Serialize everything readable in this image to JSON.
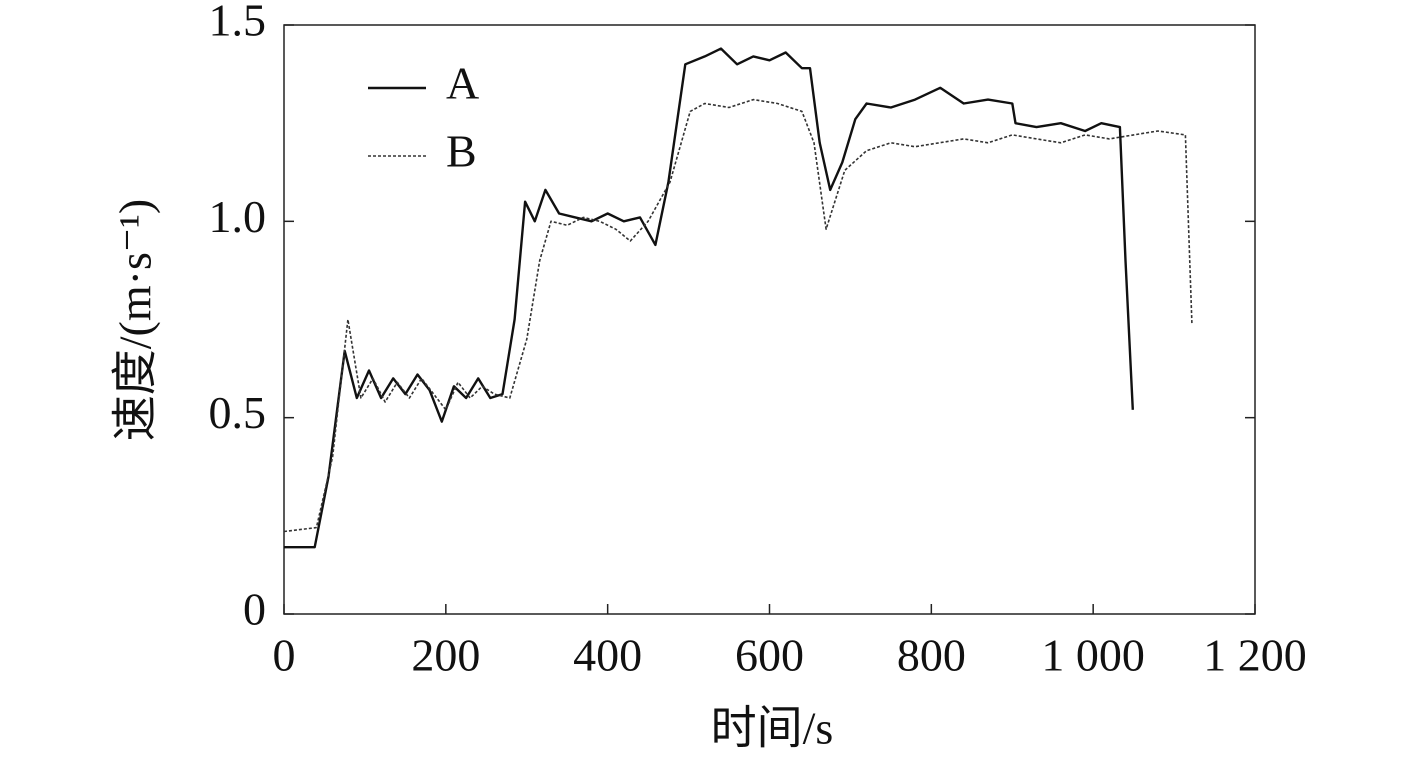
{
  "chart_data": {
    "type": "line",
    "xlabel": "时间/s",
    "ylabel": "速度/(m·s⁻¹)",
    "xlim": [
      0,
      1200
    ],
    "xticks": [
      0,
      200,
      400,
      600,
      800,
      {
        "value": 1000,
        "label": "1 000"
      },
      {
        "value": 1200,
        "label": "1 200"
      }
    ],
    "ylim": [
      0,
      1.5
    ],
    "yticks": [
      0,
      0.5,
      {
        "value": 1.0,
        "label": "1.0"
      },
      1.5
    ],
    "legend": "upper left",
    "series": [
      {
        "name": "A",
        "color": "#111111",
        "dash": "solid",
        "x": [
          0,
          38,
          55,
          75,
          90,
          105,
          120,
          135,
          150,
          165,
          180,
          195,
          210,
          225,
          240,
          255,
          270,
          285,
          298,
          310,
          323,
          340,
          360,
          380,
          400,
          420,
          440,
          459,
          475,
          496,
          520,
          540,
          560,
          580,
          600,
          620,
          640,
          650,
          662,
          675,
          690,
          706,
          720,
          750,
          780,
          811,
          840,
          870,
          900,
          904,
          930,
          960,
          990,
          1010,
          1033,
          1040,
          1049
        ],
        "values": [
          0.17,
          0.17,
          0.35,
          0.67,
          0.55,
          0.62,
          0.55,
          0.6,
          0.56,
          0.61,
          0.57,
          0.49,
          0.58,
          0.55,
          0.6,
          0.55,
          0.56,
          0.75,
          1.05,
          1.0,
          1.08,
          1.02,
          1.01,
          1.0,
          1.02,
          1.0,
          1.01,
          0.94,
          1.1,
          1.4,
          1.42,
          1.44,
          1.4,
          1.42,
          1.41,
          1.43,
          1.39,
          1.39,
          1.2,
          1.08,
          1.15,
          1.26,
          1.3,
          1.29,
          1.31,
          1.34,
          1.3,
          1.31,
          1.3,
          1.25,
          1.24,
          1.25,
          1.23,
          1.25,
          1.24,
          0.9,
          0.52
        ]
      },
      {
        "name": "B",
        "color": "#333333",
        "dash": "dotted",
        "x": [
          0,
          40,
          60,
          79,
          95,
          110,
          125,
          140,
          155,
          170,
          185,
          200,
          215,
          230,
          245,
          260,
          279,
          300,
          316,
          330,
          350,
          370,
          390,
          410,
          428,
          450,
          477,
          502,
          520,
          550,
          580,
          610,
          640,
          655,
          670,
          693,
          720,
          750,
          780,
          810,
          840,
          870,
          900,
          930,
          960,
          990,
          1020,
          1050,
          1080,
          1114,
          1122
        ],
        "values": [
          0.21,
          0.22,
          0.4,
          0.75,
          0.55,
          0.6,
          0.54,
          0.59,
          0.55,
          0.6,
          0.56,
          0.52,
          0.59,
          0.55,
          0.58,
          0.56,
          0.55,
          0.7,
          0.9,
          1.0,
          0.99,
          1.01,
          1.0,
          0.98,
          0.95,
          1.0,
          1.1,
          1.28,
          1.3,
          1.29,
          1.31,
          1.3,
          1.28,
          1.2,
          0.98,
          1.13,
          1.18,
          1.2,
          1.19,
          1.2,
          1.21,
          1.2,
          1.22,
          1.21,
          1.2,
          1.22,
          1.21,
          1.22,
          1.23,
          1.22,
          0.74
        ]
      }
    ]
  }
}
